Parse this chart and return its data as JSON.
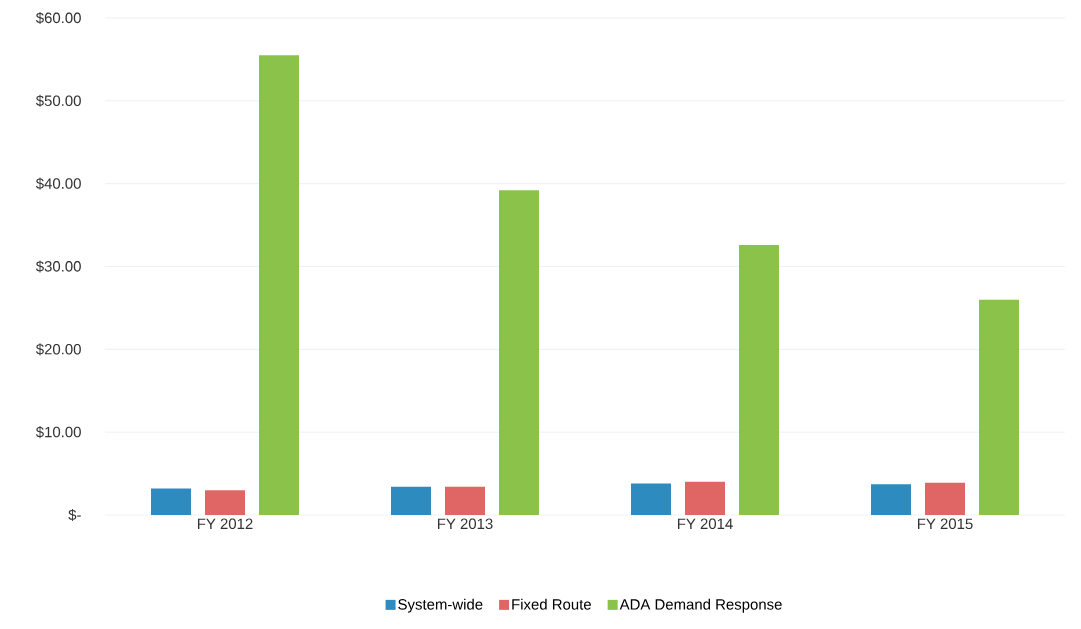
{
  "chart_data": {
    "type": "bar",
    "categories": [
      "FY 2012",
      "FY 2013",
      "FY 2014",
      "FY 2015"
    ],
    "series": [
      {
        "name": "System-wide",
        "color": "#2e8bc0",
        "values": [
          3.2,
          3.4,
          3.8,
          3.7
        ]
      },
      {
        "name": "Fixed Route",
        "color": "#e06666",
        "values": [
          3.0,
          3.4,
          4.0,
          3.9
        ]
      },
      {
        "name": "ADA Demand Response",
        "color": "#8bc34a",
        "values": [
          55.5,
          39.2,
          32.6,
          26.0
        ]
      }
    ],
    "ylim": [
      0,
      60
    ],
    "yticks": [
      {
        "value": 0,
        "label": "$-"
      },
      {
        "value": 10,
        "label": "$10.00"
      },
      {
        "value": 20,
        "label": "$20.00"
      },
      {
        "value": 30,
        "label": "$30.00"
      },
      {
        "value": 40,
        "label": "$40.00"
      },
      {
        "value": 50,
        "label": "$50.00"
      },
      {
        "value": 60,
        "label": "$60.00"
      }
    ],
    "grid": "y",
    "legend": "bottom"
  }
}
